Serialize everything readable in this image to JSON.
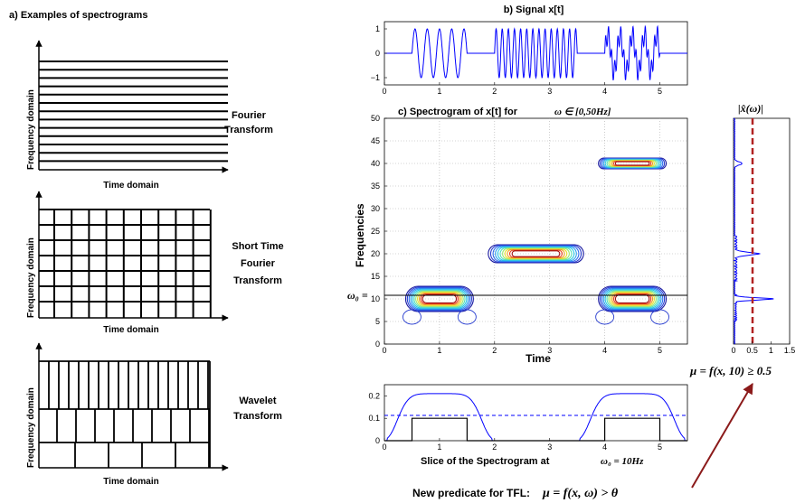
{
  "left": {
    "title": "a) Examples of spectrograms",
    "panels": [
      {
        "ylabel": "Frequency domain",
        "xlabel": "Time domain",
        "label_lines": [
          "Fourier",
          "Transform"
        ]
      },
      {
        "ylabel": "Frequency domain",
        "xlabel": "Time domain",
        "label_lines": [
          "Short Time",
          "Fourier",
          "Transform"
        ]
      },
      {
        "ylabel": "Frequency domain",
        "xlabel": "Time domain",
        "label_lines": [
          "Wavelet",
          "Transform"
        ]
      }
    ]
  },
  "signal": {
    "title": "b) Signal x[t]",
    "yticks": [
      "1",
      "0",
      "−1"
    ],
    "xticks": [
      "0",
      "1",
      "2",
      "3",
      "4",
      "5"
    ],
    "colors": {
      "line": "#0000ff"
    }
  },
  "spectrogram": {
    "title_prefix": "c) Spectrogram of x[t] for",
    "title_math": "ω ∈ [0,50Hz]",
    "ylabel": "Frequencies",
    "xlabel": "Time",
    "yticks": [
      "50",
      "45",
      "40",
      "35",
      "30",
      "25",
      "20",
      "15",
      "10",
      "5",
      "0"
    ],
    "xticks": [
      "0",
      "1",
      "2",
      "3",
      "4",
      "5"
    ],
    "omega0_label": "ω₀ =",
    "omega0_value": "10"
  },
  "magnitude": {
    "title": "|x̂(ω)|",
    "xticks": [
      "0",
      "0.5",
      "1",
      "1.5"
    ],
    "annotation": "μ = f(x, 10) ≥ 0.5",
    "colors": {
      "spectrum": "#0000ff",
      "threshold": "#b22222"
    }
  },
  "slice": {
    "yticks": [
      "0.2",
      "0.1",
      "0"
    ],
    "xticks": [
      "0",
      "1",
      "2",
      "3",
      "4",
      "5"
    ],
    "caption_prefix": "Slice of the Spectrogram at",
    "caption_math": "ω₀ = 10Hz"
  },
  "predicate": {
    "prefix": "New predicate for TFL:",
    "math": "μ = f(x, ω) > θ"
  },
  "chart_data": [
    {
      "type": "line",
      "title": "b) Signal x[t]",
      "xlabel": "",
      "ylabel": "",
      "xlim": [
        0,
        5.5
      ],
      "ylim": [
        -1.2,
        1.2
      ],
      "series": [
        {
          "segments": [
            {
              "t": [
                0.5,
                1.5
              ],
              "freq_hz": 10
            },
            {
              "t": [
                2.0,
                3.5
              ],
              "freq_hz": 20
            },
            {
              "t": [
                4.0,
                5.0
              ],
              "freq_hz": "10 and 40"
            }
          ]
        }
      ]
    },
    {
      "type": "heatmap",
      "title": "c) Spectrogram of x[t] for ω ∈ [0,50Hz]",
      "xlabel": "Time",
      "ylabel": "Frequencies",
      "xlim": [
        0,
        5.5
      ],
      "ylim": [
        0,
        50
      ],
      "blobs": [
        {
          "t": [
            0.5,
            1.5
          ],
          "freq": 10
        },
        {
          "t": [
            2.0,
            3.5
          ],
          "freq": 20
        },
        {
          "t": [
            4.0,
            5.0
          ],
          "freq": 10
        },
        {
          "t": [
            4.0,
            5.0
          ],
          "freq": 40
        }
      ],
      "horizontal_line": 10
    },
    {
      "type": "line",
      "title": "|x̂(ω)|",
      "xlim": [
        0,
        1.5
      ],
      "ylim": [
        0,
        50
      ],
      "peaks": [
        {
          "freq": 10,
          "value": 1.0
        },
        {
          "freq": 20,
          "value": 0.6
        },
        {
          "freq": 40,
          "value": 0.2
        }
      ],
      "threshold": 0.5
    },
    {
      "type": "line",
      "title": "",
      "xlabel": "Slice of the Spectrogram at ω₀ = 10Hz",
      "xlim": [
        0,
        5.5
      ],
      "ylim": [
        0,
        0.25
      ],
      "threshold": 0.1,
      "series": [
        {
          "x": [
            0,
            0.5,
            1,
            1.5,
            2,
            3.5,
            4,
            4.5,
            5,
            5.5
          ],
          "values": [
            0,
            0.12,
            0.21,
            0.12,
            0,
            0,
            0.12,
            0.21,
            0.12,
            0
          ]
        },
        {
          "x": [
            0,
            0.5,
            0.5,
            1.5,
            1.5,
            4,
            4,
            5,
            5,
            5.5
          ],
          "values": [
            0,
            0,
            0.1,
            0.1,
            0,
            0,
            0.1,
            0.1,
            0,
            0
          ]
        }
      ]
    }
  ]
}
